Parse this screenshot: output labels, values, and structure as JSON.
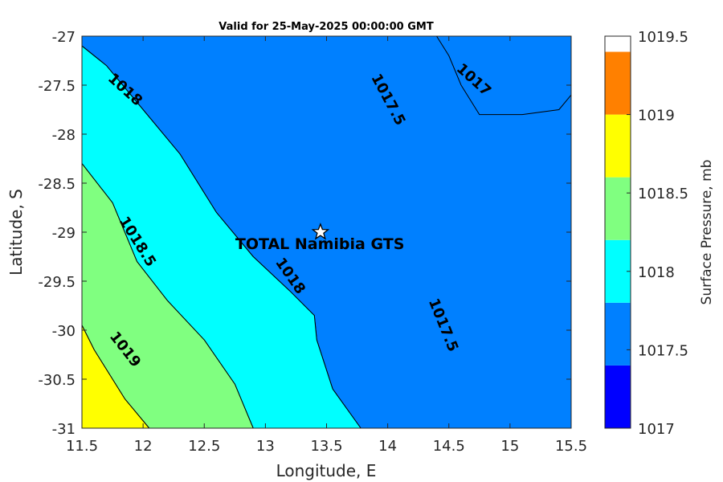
{
  "chart_data": {
    "type": "contour",
    "title": "Valid for 25-May-2025 00:00:00 GMT",
    "xlabel": "Longitude, E",
    "ylabel": "Latitude, S",
    "xlim": [
      11.5,
      15.5
    ],
    "ylim": [
      -31,
      -27
    ],
    "xticks": [
      "11.5",
      "12",
      "12.5",
      "13",
      "13.5",
      "14",
      "14.5",
      "15",
      "15.5"
    ],
    "yticks": [
      "-27",
      "-27.5",
      "-28",
      "-28.5",
      "-29",
      "-29.5",
      "-30",
      "-30.5",
      "-31"
    ],
    "colorbar": {
      "label": "Surface Pressure, mb",
      "range": [
        1017,
        1019.5
      ],
      "ticks": [
        "1017",
        "1017.5",
        "1018",
        "1018.5",
        "1019",
        "1019.5"
      ],
      "levels": [
        1017,
        1017.4,
        1017.8,
        1018.2,
        1018.6,
        1019.0,
        1019.4
      ],
      "colors": [
        "#0000ff",
        "#0080ff",
        "#00ffff",
        "#80ff80",
        "#ffff00",
        "#ff8000"
      ]
    },
    "contours": [
      {
        "level": 1017,
        "color": "#0000ff",
        "points": [
          [
            13.4,
            -27.1
          ],
          [
            13.5,
            -27.0
          ],
          [
            14.3,
            -27.0
          ],
          [
            14.9,
            -27.0
          ],
          [
            15.5,
            -27.0
          ],
          [
            15.5,
            -31.0
          ],
          [
            14.82,
            -31.0
          ],
          [
            14.62,
            -30.6
          ],
          [
            14.45,
            -30.2
          ],
          [
            14.35,
            -29.6
          ],
          [
            14.3,
            -29.2
          ],
          [
            14.35,
            -28.6
          ],
          [
            14.25,
            -28.1
          ],
          [
            14.05,
            -27.7
          ],
          [
            13.82,
            -27.2
          ],
          [
            13.7,
            -27.05
          ],
          [
            13.55,
            -27.1
          ]
        ]
      },
      {
        "level": 1017.5,
        "color": "#0080ff",
        "points": [
          [
            11.5,
            -27.0
          ],
          [
            14.3,
            -27.0
          ],
          [
            14.9,
            -27.0
          ],
          [
            15.5,
            -27.0
          ],
          [
            15.5,
            -31.0
          ],
          [
            13.78,
            -31.0
          ],
          [
            13.55,
            -30.6
          ],
          [
            13.42,
            -30.1
          ],
          [
            13.4,
            -29.85
          ],
          [
            13.2,
            -29.6
          ],
          [
            12.9,
            -29.25
          ],
          [
            12.6,
            -28.8
          ],
          [
            12.3,
            -28.2
          ],
          [
            12.0,
            -27.75
          ],
          [
            11.7,
            -27.3
          ],
          [
            11.5,
            -27.1
          ]
        ]
      },
      {
        "level": 1018,
        "color": "#00ffff",
        "points": [
          [
            11.5,
            -27.1
          ],
          [
            11.7,
            -27.3
          ],
          [
            12.0,
            -27.75
          ],
          [
            12.3,
            -28.2
          ],
          [
            12.6,
            -28.8
          ],
          [
            12.9,
            -29.25
          ],
          [
            13.2,
            -29.6
          ],
          [
            13.4,
            -29.85
          ],
          [
            13.42,
            -30.1
          ],
          [
            13.55,
            -30.6
          ],
          [
            13.78,
            -31.0
          ],
          [
            12.9,
            -31.0
          ],
          [
            12.75,
            -30.55
          ],
          [
            12.5,
            -30.1
          ],
          [
            12.2,
            -29.7
          ],
          [
            11.95,
            -29.3
          ],
          [
            11.75,
            -28.7
          ],
          [
            11.5,
            -28.3
          ]
        ]
      },
      {
        "level": 1018.5,
        "color": "#80ff80",
        "points": [
          [
            11.5,
            -28.3
          ],
          [
            11.75,
            -28.7
          ],
          [
            11.95,
            -29.3
          ],
          [
            12.2,
            -29.7
          ],
          [
            12.5,
            -30.1
          ],
          [
            12.75,
            -30.55
          ],
          [
            12.9,
            -31.0
          ],
          [
            12.05,
            -31.0
          ],
          [
            11.85,
            -30.7
          ],
          [
            11.6,
            -30.2
          ],
          [
            11.5,
            -29.95
          ]
        ]
      },
      {
        "level": 1019,
        "color": "#ffff00",
        "points": [
          [
            11.5,
            -29.95
          ],
          [
            11.6,
            -30.2
          ],
          [
            11.85,
            -30.7
          ],
          [
            12.05,
            -31.0
          ],
          [
            11.5,
            -31.0
          ]
        ]
      }
    ],
    "coastline": [
      [
        14.4,
        -27.0
      ],
      [
        14.5,
        -27.2
      ],
      [
        14.6,
        -27.5
      ],
      [
        14.75,
        -27.8
      ],
      [
        15.1,
        -27.8
      ],
      [
        15.4,
        -27.75
      ],
      [
        15.5,
        -27.6
      ]
    ],
    "contour_labels": [
      {
        "text": "1018",
        "lon": 11.85,
        "lat": -27.55,
        "angle": 42
      },
      {
        "text": "1017.5",
        "lon": 14.0,
        "lat": -27.65,
        "angle": 62
      },
      {
        "text": "1017",
        "lon": 14.7,
        "lat": -27.45,
        "angle": 42
      },
      {
        "text": "1018.5",
        "lon": 11.95,
        "lat": -29.1,
        "angle": 58
      },
      {
        "text": "1018",
        "lon": 13.2,
        "lat": -29.45,
        "angle": 55
      },
      {
        "text": "1017.5",
        "lon": 14.45,
        "lat": -29.95,
        "angle": 68
      },
      {
        "text": "1019",
        "lon": 11.85,
        "lat": -30.2,
        "angle": 52
      }
    ],
    "station": {
      "name": "TOTAL Namibia GTS",
      "lon": 13.45,
      "lat": -29.0
    }
  }
}
